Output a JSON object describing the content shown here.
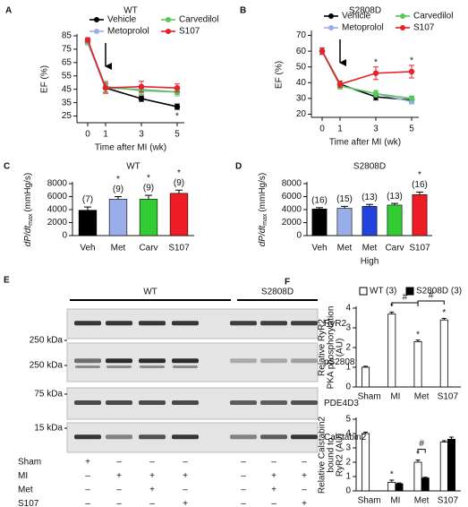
{
  "chart_data": [
    {
      "type": "line",
      "panel": "A",
      "title": "WT",
      "xlabel": "Time after MI (wk)",
      "ylabel": "EF (%)",
      "x": [
        0,
        1,
        3,
        5
      ],
      "xlim": [
        -0.6,
        5.4
      ],
      "xticks": [
        0,
        1,
        3,
        5
      ],
      "ylim": [
        20,
        85
      ],
      "yticks": [
        25,
        35,
        45,
        55,
        65,
        75,
        85
      ],
      "series": [
        {
          "name": "Vehicle",
          "color": "#000000",
          "values": [
            80,
            46,
            38,
            32
          ],
          "errors": [
            1.5,
            3,
            2,
            2
          ],
          "stars": [
            null,
            null,
            null,
            "*"
          ]
        },
        {
          "name": "Metoprolol",
          "color": "#99aee8",
          "values": [
            80,
            46,
            45,
            43
          ],
          "errors": [
            1.5,
            3,
            3,
            3
          ],
          "stars": [
            null,
            null,
            null,
            null
          ]
        },
        {
          "name": "Carvedilol",
          "color": "#55c855",
          "values": [
            81,
            47,
            44,
            43
          ],
          "errors": [
            1.5,
            4,
            3,
            2
          ],
          "stars": [
            null,
            null,
            null,
            null
          ]
        },
        {
          "name": "S107",
          "color": "#e8202a",
          "values": [
            82,
            46,
            47,
            46
          ],
          "errors": [
            1.5,
            4,
            4,
            3
          ],
          "stars": [
            null,
            null,
            null,
            null
          ]
        }
      ]
    },
    {
      "type": "line",
      "panel": "B",
      "title": "S2808D",
      "xlabel": "Time after MI (wk)",
      "ylabel": "EF (%)",
      "x": [
        0,
        1,
        3,
        5
      ],
      "xlim": [
        -0.6,
        5.4
      ],
      "xticks": [
        0,
        1,
        3,
        5
      ],
      "ylim": [
        18,
        72
      ],
      "yticks": [
        20,
        30,
        40,
        50,
        60,
        70
      ],
      "series": [
        {
          "name": "Vehicle",
          "color": "#000000",
          "values": [
            60,
            39,
            31,
            29
          ],
          "errors": [
            2,
            2,
            2,
            1.5
          ],
          "stars": [
            null,
            null,
            null,
            null
          ]
        },
        {
          "name": "Metoprolol",
          "color": "#99aee8",
          "values": [
            60,
            38,
            33,
            28
          ],
          "errors": [
            2,
            2,
            2,
            1.5
          ],
          "stars": [
            null,
            null,
            null,
            null
          ]
        },
        {
          "name": "Carvedilol",
          "color": "#55c855",
          "values": [
            60,
            38,
            33,
            30
          ],
          "errors": [
            2,
            2,
            2,
            1.5
          ],
          "stars": [
            null,
            null,
            null,
            null
          ]
        },
        {
          "name": "S107",
          "color": "#e8202a",
          "values": [
            60,
            39,
            46,
            47
          ],
          "errors": [
            2,
            2,
            4,
            4
          ],
          "stars": [
            null,
            null,
            "*",
            "*"
          ]
        }
      ]
    },
    {
      "type": "bar",
      "panel": "C",
      "title": "WT",
      "ylabel": "dP/dt",
      "ylabel_sub": "max",
      "ylabel_unit": "(mmHg/s)",
      "categories": [
        "Veh",
        "Met",
        "Carv",
        "S107"
      ],
      "subcategories": [
        null,
        null,
        null,
        null
      ],
      "values": [
        3900,
        5600,
        5600,
        6500
      ],
      "errors": [
        500,
        400,
        600,
        500
      ],
      "colors": [
        "#000000",
        "#99aee8",
        "#33cc33",
        "#ee1c24"
      ],
      "n_labels": [
        "(7)",
        "(9)",
        "(9)",
        "(9)"
      ],
      "stars": [
        null,
        "*",
        "*",
        "*"
      ],
      "ylim": [
        0,
        8000
      ],
      "yticks": [
        0,
        2000,
        4000,
        6000,
        8000
      ]
    },
    {
      "type": "bar",
      "panel": "D",
      "title": "S2808D",
      "ylabel": "dP/dt",
      "ylabel_sub": "max",
      "ylabel_unit": "(mmHg/s)",
      "categories": [
        "Veh",
        "Met",
        "Met",
        "Carv",
        "S107"
      ],
      "subcategories": [
        null,
        null,
        "High",
        null,
        null
      ],
      "values": [
        4100,
        4200,
        4500,
        4700,
        6300
      ],
      "errors": [
        200,
        300,
        300,
        250,
        400
      ],
      "colors": [
        "#000000",
        "#99aee8",
        "#2244dd",
        "#33cc33",
        "#ee1c24"
      ],
      "n_labels": [
        "(16)",
        "(15)",
        "(13)",
        "(13)",
        "(16)"
      ],
      "stars": [
        null,
        null,
        null,
        null,
        "*"
      ],
      "ylim": [
        0,
        8000
      ],
      "yticks": [
        0,
        2000,
        4000,
        6000,
        8000
      ]
    },
    {
      "type": "grouped_bar",
      "panel": "F",
      "ylabel": [
        "Relative RyR2",
        "PKA phosphorylation",
        "(AU)"
      ],
      "categories": [
        "Sham",
        "MI",
        "Met",
        "S107"
      ],
      "ylim": [
        0,
        4
      ],
      "yticks": [
        0,
        1,
        2,
        3,
        4
      ],
      "series": [
        {
          "name": "WT (3)",
          "color": "#ffffff",
          "values": [
            1,
            3.7,
            2.3,
            3.4
          ],
          "errors": [
            0.05,
            0.1,
            0.08,
            0.08
          ],
          "stars": [
            null,
            "*",
            "*",
            "*"
          ]
        },
        {
          "name": "S2808D (3)",
          "color": "#000000",
          "values": [
            null,
            null,
            null,
            null
          ],
          "errors": [
            null,
            null,
            null,
            null
          ],
          "stars": [
            null,
            null,
            null,
            null
          ]
        }
      ],
      "brackets": [
        {
          "text": "#",
          "categories": [
            "MI",
            "Met"
          ]
        },
        {
          "text": "#",
          "categories": [
            "Met",
            "S107"
          ]
        }
      ]
    },
    {
      "type": "grouped_bar",
      "ylabel": [
        "Relative Calstabin2",
        "bound to",
        "RyR2 (AU)"
      ],
      "categories": [
        "Sham",
        "MI",
        "Met",
        "S107"
      ],
      "ylim": [
        0,
        5
      ],
      "yticks": [
        0,
        1,
        2,
        3,
        4,
        5
      ],
      "series": [
        {
          "name": "WT (3)",
          "color": "#ffffff",
          "values": [
            4,
            0.6,
            2.0,
            3.4
          ],
          "errors": [
            0.1,
            0.15,
            0.15,
            0.1
          ],
          "stars": [
            null,
            "*",
            "*",
            null
          ]
        },
        {
          "name": "S2808D (3)",
          "color": "#000000",
          "values": [
            null,
            0.5,
            0.9,
            3.6
          ],
          "errors": [
            null,
            0.05,
            0.05,
            0.15
          ],
          "stars": [
            null,
            null,
            null,
            null
          ]
        }
      ],
      "brackets": [
        {
          "text": "#",
          "categories": [
            "Met"
          ]
        }
      ]
    }
  ],
  "blot": {
    "panel": "E",
    "groups": [
      "WT",
      "S2808D"
    ],
    "rows": [
      {
        "label": "RyR2",
        "marker": "250 kDa"
      },
      {
        "label": "pS2808",
        "marker": "250 kDa"
      },
      {
        "label": "PDE4D3",
        "marker": "75 kDa"
      },
      {
        "label": "Calstabin2",
        "marker": "15 kDa"
      }
    ],
    "conditions": [
      {
        "label": "Sham",
        "signs": [
          "+",
          "–",
          "–",
          "–",
          "–",
          "–",
          "–"
        ]
      },
      {
        "label": "MI",
        "signs": [
          "–",
          "+",
          "+",
          "+",
          "–",
          "+",
          "+"
        ]
      },
      {
        "label": "Met",
        "signs": [
          "–",
          "–",
          "+",
          "–",
          "–",
          "+",
          "–"
        ]
      },
      {
        "label": "S107",
        "signs": [
          "–",
          "–",
          "–",
          "+",
          "–",
          "–",
          "+"
        ]
      }
    ]
  }
}
